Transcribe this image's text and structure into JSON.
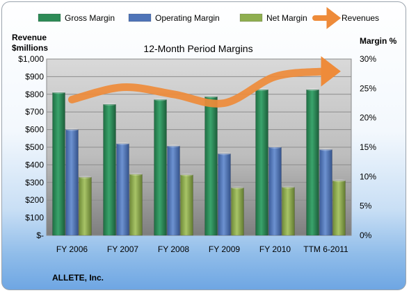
{
  "chart_data": {
    "type": "bar",
    "title": "12-Month Period Margins",
    "company": "ALLETE, Inc.",
    "categories": [
      "FY 2006",
      "FY 2007",
      "FY 2008",
      "FY 2009",
      "FY 2010",
      "TTM 6-2011"
    ],
    "left_axis": {
      "label_line1": "Revenue",
      "label_line2": "$millions",
      "range": [
        0,
        1000
      ],
      "ticks": [
        "$-",
        "$100",
        "$200",
        "$300",
        "$400",
        "$500",
        "$600",
        "$700",
        "$800",
        "$900",
        "$1,000"
      ]
    },
    "right_axis": {
      "label": "Margin %",
      "range": [
        0,
        30
      ],
      "ticks": [
        "0%",
        "5%",
        "10%",
        "15%",
        "20%",
        "25%",
        "30%"
      ]
    },
    "legend_position": "top",
    "grid": true,
    "series": [
      {
        "name": "Gross Margin",
        "kind": "bar",
        "axis": "right",
        "color": "#2e8b57",
        "values": [
          24.3,
          22.3,
          23.1,
          23.6,
          24.8,
          24.8
        ]
      },
      {
        "name": "Operating Margin",
        "kind": "bar",
        "axis": "right",
        "color": "#4f74b8",
        "values": [
          18.0,
          15.6,
          15.2,
          13.9,
          15.0,
          14.6
        ]
      },
      {
        "name": "Net Margin",
        "kind": "bar",
        "axis": "right",
        "color": "#8fae50",
        "values": [
          9.9,
          10.4,
          10.3,
          8.1,
          8.2,
          9.3
        ]
      },
      {
        "name": "Revenues",
        "kind": "line",
        "axis": "left",
        "color": "#ee8b3a",
        "values": [
          770,
          840,
          800,
          750,
          900,
          930
        ]
      }
    ]
  }
}
